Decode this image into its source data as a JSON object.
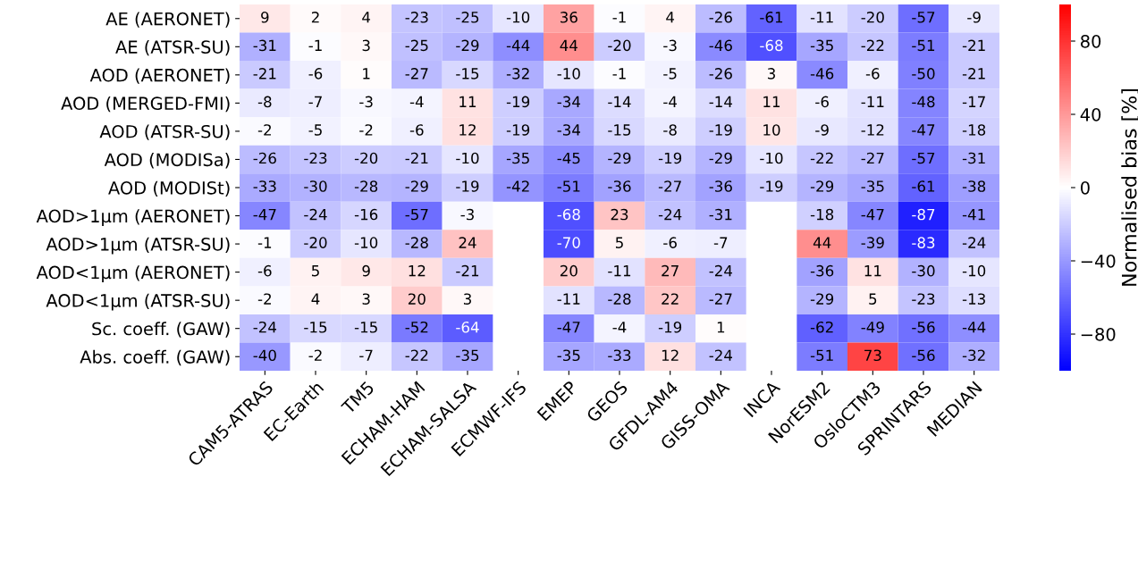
{
  "chart_data": {
    "type": "heatmap",
    "clabel": "Normalised bias [%]",
    "categories": [
      "CAM5-ATRAS",
      "EC-Earth",
      "TM5",
      "ECHAM-HAM",
      "ECHAM-SALSA",
      "ECMWF-IFS",
      "EMEP",
      "GEOS",
      "GFDL-AM4",
      "GISS-OMA",
      "INCA",
      "NorESM2",
      "OsloCTM3",
      "SPRINTARS",
      "MEDIAN"
    ],
    "y_categories": [
      "AE (AERONET)",
      "AE (ATSR-SU)",
      "AOD (AERONET)",
      "AOD (MERGED-FMI)",
      "AOD (ATSR-SU)",
      "AOD (MODISa)",
      "AOD (MODISt)",
      "AOD>1μm (AERONET)",
      "AOD>1μm (ATSR-SU)",
      "AOD<1μm (AERONET)",
      "AOD<1μm (ATSR-SU)",
      "Sc. coeff. (GAW)",
      "Abs. coeff. (GAW)"
    ],
    "cells": [
      [
        9,
        2,
        4,
        -23,
        -25,
        -10,
        36,
        -1,
        4,
        -26,
        -61,
        -11,
        -20,
        -57,
        -9
      ],
      [
        -31,
        -1,
        3,
        -25,
        -29,
        -44,
        44,
        -20,
        -3,
        -46,
        -68,
        -35,
        -22,
        -51,
        -21
      ],
      [
        -21,
        -6,
        1,
        -27,
        -15,
        -32,
        -10,
        -1,
        -5,
        -26,
        3,
        -46,
        -6,
        -50,
        -21
      ],
      [
        -8,
        -7,
        -3,
        -4,
        11,
        -19,
        -34,
        -14,
        -4,
        -14,
        11,
        -6,
        -11,
        -48,
        -17
      ],
      [
        -2,
        -5,
        -2,
        -6,
        12,
        -19,
        -34,
        -15,
        -8,
        -19,
        10,
        -9,
        -12,
        -47,
        -18
      ],
      [
        -26,
        -23,
        -20,
        -21,
        -10,
        -35,
        -45,
        -29,
        -19,
        -29,
        -10,
        -22,
        -27,
        -57,
        -31
      ],
      [
        -33,
        -30,
        -28,
        -29,
        -19,
        -42,
        -51,
        -36,
        -27,
        -36,
        -19,
        -29,
        -35,
        -61,
        -38
      ],
      [
        -47,
        -24,
        -16,
        -57,
        -3,
        null,
        -68,
        23,
        -24,
        -31,
        null,
        -18,
        -47,
        -87,
        -41
      ],
      [
        -1,
        -20,
        -10,
        -28,
        24,
        null,
        -70,
        5,
        -6,
        -7,
        null,
        44,
        -39,
        -83,
        -24
      ],
      [
        -6,
        5,
        9,
        12,
        -21,
        null,
        20,
        -11,
        27,
        -24,
        null,
        -36,
        11,
        -30,
        -10
      ],
      [
        -2,
        4,
        3,
        20,
        3,
        null,
        -11,
        -28,
        22,
        -27,
        null,
        -29,
        5,
        -23,
        -13
      ],
      [
        -24,
        -15,
        -15,
        -52,
        -64,
        null,
        -47,
        -4,
        -19,
        1,
        null,
        -62,
        -49,
        -56,
        -44
      ],
      [
        -40,
        -2,
        -7,
        -22,
        -35,
        null,
        -35,
        -33,
        12,
        -24,
        null,
        -51,
        73,
        -56,
        -32
      ]
    ],
    "data_labels": true,
    "clim": [
      -100,
      100
    ],
    "cticks": [
      {
        "value": -80,
        "label": "−80"
      },
      {
        "value": -40,
        "label": "−40"
      },
      {
        "value": 0,
        "label": "0"
      },
      {
        "value": 40,
        "label": "40"
      },
      {
        "value": 80,
        "label": "80"
      }
    ]
  }
}
